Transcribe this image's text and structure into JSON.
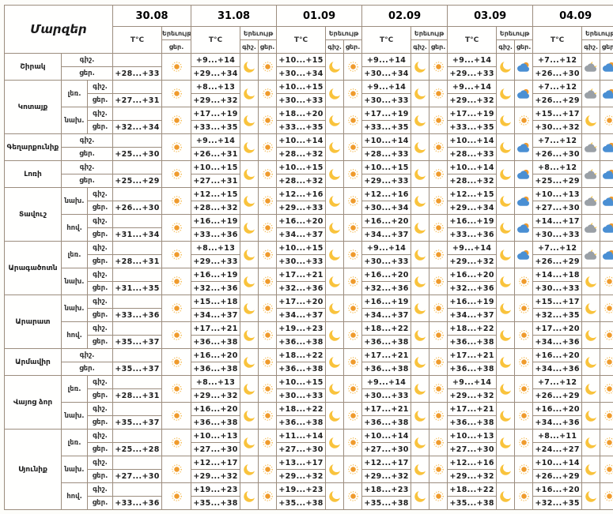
{
  "colors": {
    "border": "#9c8d7e",
    "sun_core": "#ef9b2d",
    "sun_halo": "#f4b84a",
    "moon": "#f9c33c",
    "cloud_day": "#4a8fd3",
    "cloud_night": "#9aa0a6",
    "text": "#222222"
  },
  "icon_legend": {
    "sun": "clear-day",
    "moon": "clear-night",
    "sun-cloud": "partly-cloudy-day",
    "moon-cloud": "cloudy-night"
  },
  "chart_data": {
    "type": "table",
    "title": "Մարզեր",
    "headers": {
      "corner": "Մարզեր",
      "temp": "T°C",
      "phenomenon": "Երեւույթ",
      "night": "գիշ.",
      "day": "ցեր."
    },
    "dates": [
      "30.08",
      "31.08",
      "01.09",
      "02.09",
      "03.09",
      "04.09"
    ],
    "regions": [
      {
        "name": "Շիրակ",
        "zones": [
          {
            "label": "",
            "rows": [
              {
                "n": "",
                "d": "+28...+33",
                "ni": "",
                "di": "sun"
              },
              {
                "n": "+9...+14",
                "d": "+29...+34",
                "ni": "moon",
                "di": "sun"
              },
              {
                "n": "+10...+15",
                "d": "+30...+34",
                "ni": "moon",
                "di": "sun"
              },
              {
                "n": "+9...+14",
                "d": "+30...+34",
                "ni": "moon",
                "di": "sun"
              },
              {
                "n": "+9...+14",
                "d": "+29...+33",
                "ni": "moon",
                "di": "sun-cloud"
              },
              {
                "n": "+7...+12",
                "d": "+26...+30",
                "ni": "moon-cloud",
                "di": "sun-cloud"
              }
            ]
          }
        ]
      },
      {
        "name": "Կոտայք",
        "zones": [
          {
            "label": "լեռ.",
            "rows": [
              {
                "n": "",
                "d": "+27...+31",
                "ni": "",
                "di": "sun"
              },
              {
                "n": "+8...+13",
                "d": "+29...+32",
                "ni": "moon",
                "di": "sun"
              },
              {
                "n": "+10...+15",
                "d": "+30...+33",
                "ni": "moon",
                "di": "sun"
              },
              {
                "n": "+9...+14",
                "d": "+30...+33",
                "ni": "moon",
                "di": "sun"
              },
              {
                "n": "+9...+14",
                "d": "+29...+32",
                "ni": "moon",
                "di": "sun-cloud"
              },
              {
                "n": "+7...+12",
                "d": "+26...+29",
                "ni": "moon-cloud",
                "di": "sun-cloud"
              }
            ]
          },
          {
            "label": "նախ.",
            "rows": [
              {
                "n": "",
                "d": "+32...+34",
                "ni": "",
                "di": "sun"
              },
              {
                "n": "+17...+19",
                "d": "+33...+35",
                "ni": "moon",
                "di": "sun"
              },
              {
                "n": "+18...+20",
                "d": "+33...+35",
                "ni": "moon",
                "di": "sun"
              },
              {
                "n": "+17...+19",
                "d": "+33...+35",
                "ni": "moon",
                "di": "sun"
              },
              {
                "n": "+17...+19",
                "d": "+33...+35",
                "ni": "moon",
                "di": "sun"
              },
              {
                "n": "+15...+17",
                "d": "+30...+32",
                "ni": "moon",
                "di": "sun"
              }
            ]
          }
        ]
      },
      {
        "name": "Գեղարքունիք",
        "zones": [
          {
            "label": "",
            "rows": [
              {
                "n": "",
                "d": "+25...+30",
                "ni": "",
                "di": "sun"
              },
              {
                "n": "+9...+14",
                "d": "+26...+31",
                "ni": "moon",
                "di": "sun"
              },
              {
                "n": "+10...+14",
                "d": "+28...+32",
                "ni": "moon",
                "di": "sun"
              },
              {
                "n": "+10...+14",
                "d": "+28...+33",
                "ni": "moon",
                "di": "sun"
              },
              {
                "n": "+10...+14",
                "d": "+28...+33",
                "ni": "moon",
                "di": "sun-cloud"
              },
              {
                "n": "+7...+12",
                "d": "+26...+30",
                "ni": "moon-cloud",
                "di": "sun-cloud"
              }
            ]
          }
        ]
      },
      {
        "name": "Լոռի",
        "zones": [
          {
            "label": "",
            "rows": [
              {
                "n": "",
                "d": "+25...+29",
                "ni": "",
                "di": "sun"
              },
              {
                "n": "+10...+15",
                "d": "+27...+31",
                "ni": "moon",
                "di": "sun"
              },
              {
                "n": "+10...+15",
                "d": "+28...+32",
                "ni": "moon",
                "di": "sun"
              },
              {
                "n": "+10...+15",
                "d": "+29...+33",
                "ni": "moon",
                "di": "sun"
              },
              {
                "n": "+10...+14",
                "d": "+28...+32",
                "ni": "moon",
                "di": "sun-cloud"
              },
              {
                "n": "+8...+12",
                "d": "+25...+29",
                "ni": "moon-cloud",
                "di": "sun-cloud"
              }
            ]
          }
        ]
      },
      {
        "name": "Տավուշ",
        "zones": [
          {
            "label": "նախ.",
            "rows": [
              {
                "n": "",
                "d": "+26...+30",
                "ni": "",
                "di": "sun"
              },
              {
                "n": "+12...+15",
                "d": "+28...+32",
                "ni": "moon",
                "di": "sun"
              },
              {
                "n": "+12...+16",
                "d": "+29...+33",
                "ni": "moon",
                "di": "sun"
              },
              {
                "n": "+12...+16",
                "d": "+30...+34",
                "ni": "moon",
                "di": "sun"
              },
              {
                "n": "+12...+15",
                "d": "+29...+34",
                "ni": "moon",
                "di": "sun-cloud"
              },
              {
                "n": "+10...+13",
                "d": "+27...+30",
                "ni": "moon-cloud",
                "di": "sun-cloud"
              }
            ]
          },
          {
            "label": "հով.",
            "rows": [
              {
                "n": "",
                "d": "+31...+34",
                "ni": "",
                "di": "sun"
              },
              {
                "n": "+16...+19",
                "d": "+33...+36",
                "ni": "moon",
                "di": "sun"
              },
              {
                "n": "+16...+20",
                "d": "+34...+37",
                "ni": "moon",
                "di": "sun"
              },
              {
                "n": "+16...+20",
                "d": "+34...+37",
                "ni": "moon",
                "di": "sun"
              },
              {
                "n": "+16...+19",
                "d": "+33...+36",
                "ni": "moon",
                "di": "sun-cloud"
              },
              {
                "n": "+14...+17",
                "d": "+30...+33",
                "ni": "moon-cloud",
                "di": "sun-cloud"
              }
            ]
          }
        ]
      },
      {
        "name": "Արագածոտն",
        "zones": [
          {
            "label": "լեռ.",
            "rows": [
              {
                "n": "",
                "d": "+28...+31",
                "ni": "",
                "di": "sun"
              },
              {
                "n": "+8...+13",
                "d": "+29...+33",
                "ni": "moon",
                "di": "sun"
              },
              {
                "n": "+10...+15",
                "d": "+30...+33",
                "ni": "moon",
                "di": "sun"
              },
              {
                "n": "+9...+14",
                "d": "+30...+33",
                "ni": "moon",
                "di": "sun"
              },
              {
                "n": "+9...+14",
                "d": "+29...+32",
                "ni": "moon",
                "di": "sun-cloud"
              },
              {
                "n": "+7...+12",
                "d": "+26...+29",
                "ni": "moon-cloud",
                "di": "sun-cloud"
              }
            ]
          },
          {
            "label": "նախ.",
            "rows": [
              {
                "n": "",
                "d": "+31...+35",
                "ni": "",
                "di": "sun"
              },
              {
                "n": "+16...+19",
                "d": "+32...+36",
                "ni": "moon",
                "di": "sun"
              },
              {
                "n": "+17...+21",
                "d": "+32...+36",
                "ni": "moon",
                "di": "sun"
              },
              {
                "n": "+16...+20",
                "d": "+32...+36",
                "ni": "moon",
                "di": "sun"
              },
              {
                "n": "+16...+20",
                "d": "+32...+36",
                "ni": "moon",
                "di": "sun"
              },
              {
                "n": "+14...+18",
                "d": "+30...+33",
                "ni": "moon",
                "di": "sun"
              }
            ]
          }
        ]
      },
      {
        "name": "Արարատ",
        "zones": [
          {
            "label": "նախ.",
            "rows": [
              {
                "n": "",
                "d": "+33...+36",
                "ni": "",
                "di": "sun"
              },
              {
                "n": "+15...+18",
                "d": "+34...+37",
                "ni": "moon",
                "di": "sun"
              },
              {
                "n": "+17...+20",
                "d": "+34...+37",
                "ni": "moon",
                "di": "sun"
              },
              {
                "n": "+16...+19",
                "d": "+34...+37",
                "ni": "moon",
                "di": "sun"
              },
              {
                "n": "+16...+19",
                "d": "+34...+37",
                "ni": "moon",
                "di": "sun"
              },
              {
                "n": "+15...+17",
                "d": "+32...+35",
                "ni": "moon",
                "di": "sun"
              }
            ]
          },
          {
            "label": "հով.",
            "rows": [
              {
                "n": "",
                "d": "+35...+37",
                "ni": "",
                "di": "sun"
              },
              {
                "n": "+17...+21",
                "d": "+36...+38",
                "ni": "moon",
                "di": "sun"
              },
              {
                "n": "+19...+23",
                "d": "+36...+38",
                "ni": "moon",
                "di": "sun"
              },
              {
                "n": "+18...+22",
                "d": "+36...+38",
                "ni": "moon",
                "di": "sun"
              },
              {
                "n": "+18...+22",
                "d": "+36...+38",
                "ni": "moon",
                "di": "sun"
              },
              {
                "n": "+17...+20",
                "d": "+34...+36",
                "ni": "moon",
                "di": "sun"
              }
            ]
          }
        ]
      },
      {
        "name": "Արմավիր",
        "zones": [
          {
            "label": "",
            "rows": [
              {
                "n": "",
                "d": "+35...+37",
                "ni": "",
                "di": "sun"
              },
              {
                "n": "+16...+20",
                "d": "+36...+38",
                "ni": "moon",
                "di": "sun"
              },
              {
                "n": "+18...+22",
                "d": "+36...+38",
                "ni": "moon",
                "di": "sun"
              },
              {
                "n": "+17...+21",
                "d": "+36...+38",
                "ni": "moon",
                "di": "sun"
              },
              {
                "n": "+17...+21",
                "d": "+36...+38",
                "ni": "moon",
                "di": "sun"
              },
              {
                "n": "+16...+20",
                "d": "+34...+36",
                "ni": "moon",
                "di": "sun"
              }
            ]
          }
        ]
      },
      {
        "name": "Վայոց ձոր",
        "zones": [
          {
            "label": "լեռ.",
            "rows": [
              {
                "n": "",
                "d": "+28...+31",
                "ni": "",
                "di": "sun"
              },
              {
                "n": "+8...+13",
                "d": "+29...+32",
                "ni": "moon",
                "di": "sun"
              },
              {
                "n": "+10...+15",
                "d": "+30...+33",
                "ni": "moon",
                "di": "sun"
              },
              {
                "n": "+9...+14",
                "d": "+30...+33",
                "ni": "moon",
                "di": "sun"
              },
              {
                "n": "+9...+14",
                "d": "+29...+32",
                "ni": "moon",
                "di": "sun"
              },
              {
                "n": "+7...+12",
                "d": "+26...+29",
                "ni": "moon",
                "di": "sun"
              }
            ]
          },
          {
            "label": "նախ.",
            "rows": [
              {
                "n": "",
                "d": "+35...+37",
                "ni": "",
                "di": "sun"
              },
              {
                "n": "+16...+20",
                "d": "+36...+38",
                "ni": "moon",
                "di": "sun"
              },
              {
                "n": "+18...+22",
                "d": "+36...+38",
                "ni": "moon",
                "di": "sun"
              },
              {
                "n": "+17...+21",
                "d": "+36...+38",
                "ni": "moon",
                "di": "sun"
              },
              {
                "n": "+17...+21",
                "d": "+36...+38",
                "ni": "moon",
                "di": "sun"
              },
              {
                "n": "+16...+20",
                "d": "+34...+36",
                "ni": "moon",
                "di": "sun"
              }
            ]
          }
        ]
      },
      {
        "name": "Սյունիք",
        "zones": [
          {
            "label": "լեռ.",
            "rows": [
              {
                "n": "",
                "d": "+25...+28",
                "ni": "",
                "di": "sun"
              },
              {
                "n": "+10...+13",
                "d": "+27...+30",
                "ni": "moon",
                "di": "sun"
              },
              {
                "n": "+11...+14",
                "d": "+27...+30",
                "ni": "moon",
                "di": "sun"
              },
              {
                "n": "+10...+14",
                "d": "+27...+30",
                "ni": "moon",
                "di": "sun"
              },
              {
                "n": "+10...+13",
                "d": "+27...+30",
                "ni": "moon",
                "di": "sun"
              },
              {
                "n": "+8...+11",
                "d": "+24...+27",
                "ni": "moon",
                "di": "sun"
              }
            ]
          },
          {
            "label": "նախ.",
            "rows": [
              {
                "n": "",
                "d": "+27...+30",
                "ni": "",
                "di": "sun"
              },
              {
                "n": "+12...+17",
                "d": "+29...+32",
                "ni": "moon",
                "di": "sun"
              },
              {
                "n": "+13...+17",
                "d": "+29...+32",
                "ni": "moon",
                "di": "sun"
              },
              {
                "n": "+12...+17",
                "d": "+29...+32",
                "ni": "moon",
                "di": "sun"
              },
              {
                "n": "+12...+16",
                "d": "+29...+32",
                "ni": "moon",
                "di": "sun"
              },
              {
                "n": "+10...+14",
                "d": "+26...+29",
                "ni": "moon",
                "di": "sun"
              }
            ]
          },
          {
            "label": "հով.",
            "rows": [
              {
                "n": "",
                "d": "+33...+36",
                "ni": "",
                "di": "sun"
              },
              {
                "n": "+19...+23",
                "d": "+35...+38",
                "ni": "moon",
                "di": "sun"
              },
              {
                "n": "+19...+23",
                "d": "+35...+38",
                "ni": "moon",
                "di": "sun"
              },
              {
                "n": "+18...+23",
                "d": "+35...+38",
                "ni": "moon",
                "di": "sun"
              },
              {
                "n": "+18...+22",
                "d": "+35...+38",
                "ni": "moon",
                "di": "sun"
              },
              {
                "n": "+16...+20",
                "d": "+32...+35",
                "ni": "moon",
                "di": "sun"
              }
            ]
          }
        ]
      }
    ]
  }
}
